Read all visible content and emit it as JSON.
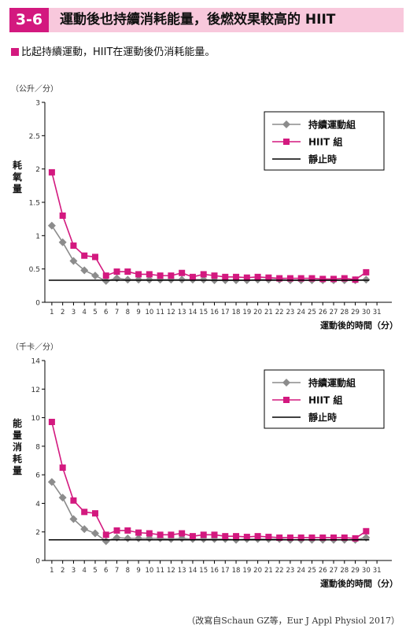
{
  "header": {
    "number": "3-6",
    "title": "運動後也持續消耗能量，後燃效果較高的 HIIT"
  },
  "subtitle": "比起持續運動，HIIT在運動後仍消耗能量。",
  "source": "（改寫自Schaun GZ等，Eur J  Appl  Physiol 2017）",
  "colors": {
    "continuous": "#8c8c8c",
    "hiit": "#d3197f",
    "rest": "#000000",
    "accent": "#d3197f"
  },
  "chart_data": [
    {
      "type": "line",
      "unit": "（公升／分）",
      "ylabel": "耗氧量",
      "xlabel": "運動後的時間（分）",
      "ylim": [
        0,
        3
      ],
      "yticks": [
        0,
        0.5,
        1,
        1.5,
        2,
        2.5,
        3
      ],
      "ytick_labels": [
        "0",
        "0.5",
        "1",
        "1.5",
        "2",
        "2.5",
        "3"
      ],
      "x": [
        1,
        2,
        3,
        4,
        5,
        6,
        7,
        8,
        9,
        10,
        11,
        12,
        13,
        14,
        15,
        16,
        17,
        18,
        19,
        20,
        21,
        22,
        23,
        24,
        25,
        26,
        27,
        28,
        29,
        30,
        31
      ],
      "legend_position": "top-right",
      "series": [
        {
          "name": "持續運動組",
          "key": "continuous",
          "marker": "diamond",
          "values": [
            1.15,
            0.9,
            0.62,
            0.48,
            0.4,
            0.32,
            0.36,
            0.34,
            0.34,
            0.34,
            0.34,
            0.34,
            0.34,
            0.34,
            0.34,
            0.33,
            0.33,
            0.33,
            0.33,
            0.34,
            0.34,
            0.34,
            0.33,
            0.33,
            0.33,
            0.33,
            0.33,
            0.33,
            0.33,
            0.34,
            null
          ]
        },
        {
          "name": "HIIT 組",
          "key": "hiit",
          "marker": "square",
          "values": [
            1.95,
            1.3,
            0.85,
            0.7,
            0.68,
            0.4,
            0.46,
            0.46,
            0.42,
            0.42,
            0.4,
            0.4,
            0.44,
            0.38,
            0.42,
            0.4,
            0.38,
            0.38,
            0.37,
            0.38,
            0.37,
            0.36,
            0.36,
            0.36,
            0.36,
            0.35,
            0.35,
            0.36,
            0.34,
            0.45,
            null
          ]
        },
        {
          "name": "靜止時",
          "key": "rest",
          "marker": "none",
          "constant": 0.33
        }
      ]
    },
    {
      "type": "line",
      "unit": "（千卡／分）",
      "ylabel": "能量消耗量",
      "xlabel": "運動後的時間（分）",
      "ylim": [
        0,
        14
      ],
      "yticks": [
        0,
        2,
        4,
        6,
        8,
        10,
        12,
        14
      ],
      "ytick_labels": [
        "0",
        "2",
        "4",
        "6",
        "8",
        "10",
        "12",
        "14"
      ],
      "x": [
        1,
        2,
        3,
        4,
        5,
        6,
        7,
        8,
        9,
        10,
        11,
        12,
        13,
        14,
        15,
        16,
        17,
        18,
        19,
        20,
        21,
        22,
        23,
        24,
        25,
        26,
        27,
        28,
        29,
        30,
        31
      ],
      "legend_position": "top-right",
      "series": [
        {
          "name": "持續運動組",
          "key": "continuous",
          "marker": "diamond",
          "values": [
            5.5,
            4.4,
            2.9,
            2.2,
            1.9,
            1.35,
            1.6,
            1.55,
            1.55,
            1.55,
            1.55,
            1.5,
            1.55,
            1.5,
            1.5,
            1.5,
            1.5,
            1.45,
            1.5,
            1.5,
            1.5,
            1.5,
            1.45,
            1.45,
            1.45,
            1.45,
            1.45,
            1.45,
            1.45,
            1.6,
            null
          ]
        },
        {
          "name": "HIIT 組",
          "key": "hiit",
          "marker": "square",
          "values": [
            9.7,
            6.5,
            4.2,
            3.4,
            3.3,
            1.8,
            2.1,
            2.1,
            1.95,
            1.9,
            1.8,
            1.8,
            1.9,
            1.7,
            1.8,
            1.8,
            1.7,
            1.7,
            1.65,
            1.7,
            1.65,
            1.6,
            1.6,
            1.6,
            1.6,
            1.6,
            1.6,
            1.6,
            1.55,
            2.05,
            null
          ]
        },
        {
          "name": "靜止時",
          "key": "rest",
          "marker": "none",
          "constant": 1.45
        }
      ]
    }
  ]
}
